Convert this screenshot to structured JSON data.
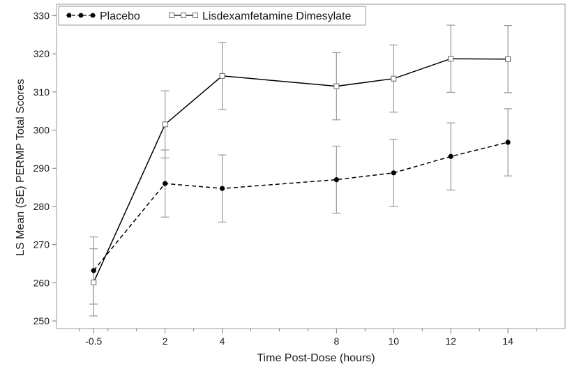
{
  "chart_data": {
    "type": "line",
    "xlabel": "Time Post-Dose (hours)",
    "ylabel": "LS Mean (SE) PERMP Total Scores",
    "x_ticks": [
      -0.5,
      2,
      4,
      8,
      10,
      12,
      14
    ],
    "x_tick_labels": [
      "-0.5",
      "2",
      "4",
      "8",
      "10",
      "12",
      "14"
    ],
    "xlim": [
      -1.8,
      16
    ],
    "y_ticks": [
      250,
      260,
      270,
      280,
      290,
      300,
      310,
      320,
      330
    ],
    "y_tick_labels": [
      "250",
      "260",
      "270",
      "280",
      "290",
      "300",
      "310",
      "320",
      "330"
    ],
    "ylim": [
      248,
      333
    ],
    "grid": false,
    "legend_position": "top-left",
    "series": [
      {
        "name": "Placebo",
        "color": "#000000",
        "line_style": "dashed",
        "marker": "filled-circle",
        "x": [
          -0.5,
          2,
          4,
          8,
          10,
          12,
          14
        ],
        "y": [
          263.2,
          286.0,
          284.7,
          287.0,
          288.8,
          293.1,
          296.8
        ],
        "se": [
          8.8,
          8.8,
          8.8,
          8.8,
          8.8,
          8.8,
          8.8
        ]
      },
      {
        "name": "Lisdexamfetamine Dimesylate",
        "color": "#000000",
        "line_style": "solid",
        "marker": "open-square",
        "x": [
          -0.5,
          2,
          4,
          8,
          10,
          12,
          14
        ],
        "y": [
          260.1,
          301.5,
          314.2,
          311.5,
          313.5,
          318.7,
          318.6
        ],
        "se": [
          8.8,
          8.8,
          8.8,
          8.8,
          8.8,
          8.8,
          8.8
        ]
      }
    ],
    "error_bar_color": "#999999"
  }
}
